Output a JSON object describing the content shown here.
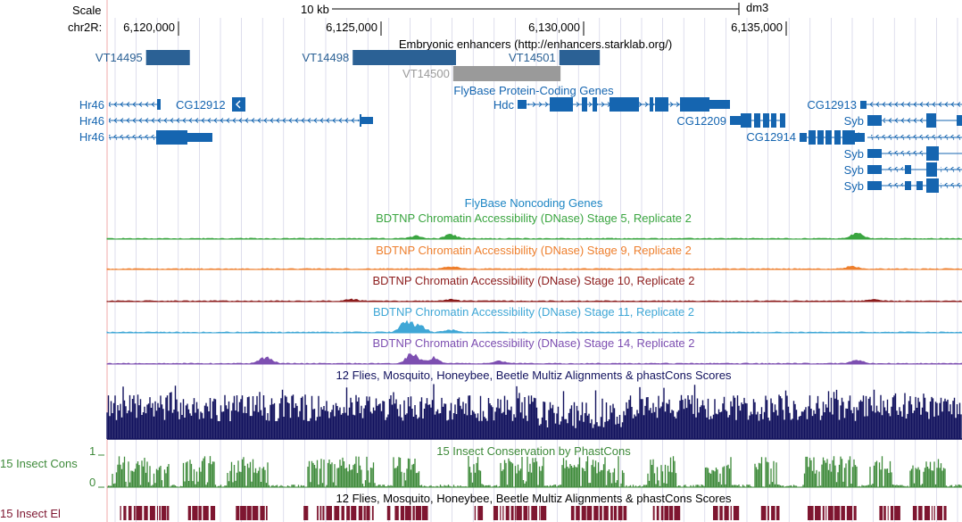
{
  "ruler": {
    "scale_label": "Scale",
    "scale_value": "10 kb",
    "assembly": "dm3",
    "chrom_label": "chr2R:",
    "ticks": [
      {
        "pos": 6120000,
        "label": "6,120,000"
      },
      {
        "pos": 6125000,
        "label": "6,125,000"
      },
      {
        "pos": 6130000,
        "label": "6,130,000"
      },
      {
        "pos": 6135000,
        "label": "6,135,000"
      }
    ]
  },
  "tracks": {
    "enhancers": {
      "title": "Embryonic enhancers (http://enhancers.starklab.org/)",
      "items": [
        {
          "name": "VT14495",
          "start": 6119200,
          "end": 6120280,
          "muted": false
        },
        {
          "name": "VT14498",
          "start": 6124300,
          "end": 6126850,
          "muted": false
        },
        {
          "name": "VT14500",
          "start": 6126780,
          "end": 6129430,
          "muted": true
        },
        {
          "name": "VT14501",
          "start": 6129400,
          "end": 6130400,
          "muted": false
        }
      ]
    },
    "genes": {
      "title": "FlyBase Protein-Coding Genes",
      "labels": [
        "Hr46",
        "Hr46",
        "Hr46",
        "CG12912",
        "Hdc",
        "CG12209",
        "CG12914",
        "CG12913",
        "Syb",
        "Syb",
        "Syb",
        "Syb",
        "Syb"
      ]
    },
    "noncoding": {
      "title": "FlyBase Noncoding Genes"
    },
    "dnase": [
      {
        "title": "BDTNP Chromatin Accessibility (DNase) Stage 5, Replicate 2",
        "color": "#3aa540"
      },
      {
        "title": "BDTNP Chromatin Accessibility (DNase) Stage 9, Replicate 2",
        "color": "#ee7f2d"
      },
      {
        "title": "BDTNP Chromatin Accessibility (DNase) Stage 10, Replicate 2",
        "color": "#8c1c1c"
      },
      {
        "title": "BDTNP Chromatin Accessibility (DNase) Stage 11, Replicate 2",
        "color": "#3fa7d6"
      },
      {
        "title": "BDTNP Chromatin Accessibility (DNase) Stage 14, Replicate 2",
        "color": "#7d4fb1"
      }
    ],
    "multiz": {
      "title": "12 Flies, Mosquito, Honeybee, Beetle Multiz Alignments & phastCons Scores",
      "color": "#12125e"
    },
    "phastcons": {
      "title": "15 Insect Conservation by PhastCons",
      "side_label": "15 Insect Cons",
      "y_max": "1",
      "y_min": "0",
      "color": "#3e8a3a"
    },
    "elements": {
      "title": "12 Flies, Mosquito, Honeybee, Beetle Multiz Alignments & phastCons Scores",
      "side_label": "15 Insect El",
      "color": "#7e1630"
    }
  },
  "colors": {
    "gene": "#1565b0",
    "enhancer": "#2b6195",
    "enhancer_muted": "#9a9a9a",
    "grid": "#c8c8e0",
    "left_edge": "#f0a8a8"
  }
}
